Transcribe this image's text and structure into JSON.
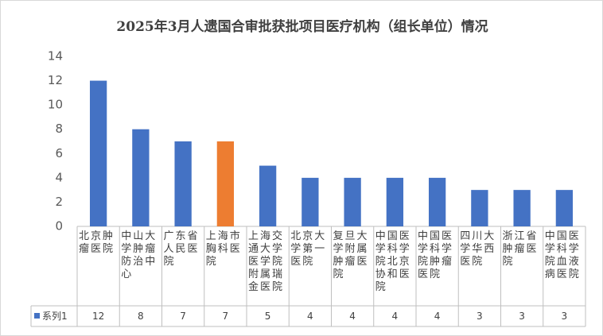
{
  "chart_data": {
    "type": "bar",
    "title": "2025年3月人遗国合审批获批项目医疗机构（组长单位）情况",
    "categories": [
      "北京肿瘤医院",
      "中山大学肿瘤防治中心",
      "广东省人民医院",
      "上海市胸科医院",
      "上海交通大学医学院附属瑞金医院",
      "北京大学第一医院",
      "复旦大学附属肿瘤医院",
      "中国医学科学院北京协和医院",
      "中国医学科学院肿瘤医院",
      "四川大学华西医院",
      "浙江省肿瘤医院",
      "中国医学科学院血液病医院"
    ],
    "series": [
      {
        "name": "系列1",
        "color": "#4472c4",
        "point_colors": [
          "#4472c4",
          "#4472c4",
          "#4472c4",
          "#ed7d31",
          "#4472c4",
          "#4472c4",
          "#4472c4",
          "#4472c4",
          "#4472c4",
          "#4472c4",
          "#4472c4",
          "#4472c4"
        ],
        "values": [
          12,
          8,
          7,
          7,
          5,
          4,
          4,
          4,
          4,
          3,
          3,
          3
        ]
      }
    ],
    "ylim": [
      0,
      14
    ],
    "yticks": [
      0,
      2,
      4,
      6,
      8,
      10,
      12,
      14
    ],
    "grid": false,
    "data_table": true
  }
}
